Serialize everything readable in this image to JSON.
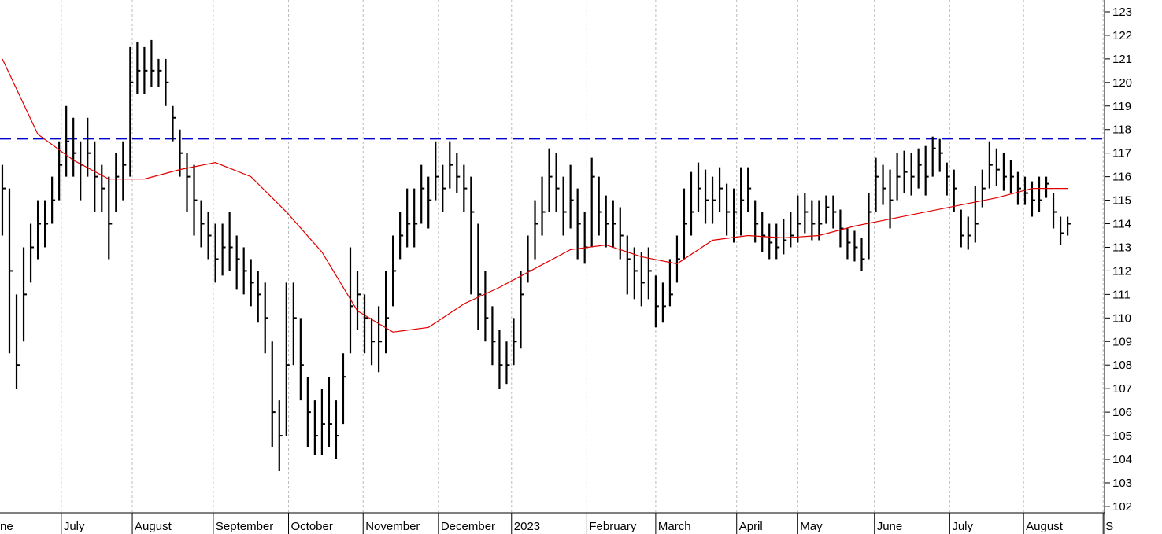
{
  "chart_data": {
    "type": "ohlc",
    "color": "#000000",
    "high": [
      116.5,
      115.5,
      111,
      113,
      114,
      115,
      115,
      116,
      117.5,
      119,
      118.5,
      117.5,
      118.5,
      117.5,
      116.5,
      116,
      117,
      117.5,
      121.5,
      121.7,
      121.5,
      121.8,
      121,
      121,
      119,
      118,
      117,
      116.5,
      115,
      114.5,
      114,
      114,
      114.5,
      113.5,
      113,
      112.5,
      112,
      111.5,
      109,
      106.5,
      111.5,
      111.5,
      110,
      107.5,
      106.5,
      107,
      107.5,
      106.5,
      108.5,
      113,
      112,
      111,
      110,
      110.5,
      112,
      113.5,
      114.5,
      115.5,
      115.5,
      116.5,
      116,
      117.5,
      116.5,
      117.5,
      117,
      116.5,
      116,
      114,
      112,
      110.5,
      109.5,
      109,
      110,
      112,
      113.5,
      115,
      116,
      117.2,
      117,
      116,
      116.5,
      115.5,
      114.5,
      116.8,
      116,
      115.2,
      115,
      114.7,
      113.5,
      113,
      112.8,
      113,
      111.8,
      111.5,
      112.5,
      113.5,
      115.5,
      116.2,
      116.6,
      116.3,
      116,
      116.4,
      115.7,
      115.5,
      116.4,
      116.4,
      115,
      114.5,
      114,
      114,
      114.2,
      114.5,
      115.2,
      115.3,
      115,
      115,
      115.2,
      115.2,
      114.6,
      113.8,
      113.7,
      113.4,
      115.3,
      116.8,
      116.5,
      116.3,
      117,
      117.1,
      117,
      117.2,
      117.3,
      117.7,
      117.6,
      116.6,
      116.3,
      114.6,
      114.3,
      115.6,
      116.3,
      117.5,
      117.2,
      117,
      116.7,
      116.2,
      116,
      115.8,
      116,
      116,
      115.3,
      114.3,
      114.3
    ],
    "low": [
      113.5,
      108.5,
      107,
      109,
      111.5,
      112.5,
      113,
      114,
      115,
      116,
      116,
      115,
      116,
      114.5,
      114.5,
      112.5,
      114.5,
      115,
      116,
      119.5,
      119.5,
      119.8,
      119.8,
      119,
      117.5,
      116,
      114.5,
      113.5,
      113,
      112.5,
      111.5,
      111.8,
      112,
      111.2,
      111,
      110.5,
      109.8,
      108.5,
      104.5,
      103.5,
      105,
      108,
      106.5,
      104.5,
      104.2,
      104.2,
      104.5,
      104,
      105.5,
      108.5,
      109.5,
      108.5,
      108,
      107.7,
      108.5,
      110.5,
      112.5,
      113,
      113,
      114,
      113.8,
      115,
      114.5,
      115.5,
      115.3,
      114.5,
      111,
      109.5,
      109,
      108,
      107,
      107.2,
      108,
      108.7,
      111.5,
      112.5,
      113.5,
      114.5,
      114.5,
      113.5,
      113.8,
      112.5,
      112.3,
      113,
      113.5,
      113,
      113,
      112.5,
      111,
      110.8,
      110.5,
      110.8,
      109.6,
      109.8,
      110.5,
      111.5,
      112.5,
      113.5,
      114.5,
      114,
      114,
      114.5,
      113.5,
      113.2,
      113.5,
      114.5,
      113.2,
      112.8,
      112.5,
      112.5,
      112.7,
      113,
      113.2,
      113.6,
      113.3,
      113.3,
      114,
      113.8,
      113,
      112.5,
      112.4,
      112,
      112.5,
      114.5,
      114.8,
      113.8,
      115,
      115.3,
      115.2,
      115.5,
      115.2,
      116,
      116.2,
      115.2,
      114.5,
      113,
      112.9,
      113.2,
      114.7,
      115.5,
      115.6,
      115.4,
      115.3,
      114.8,
      114.8,
      114.3,
      114.5,
      115.1,
      113.8,
      113.1,
      113.5
    ],
    "close": [
      115.5,
      112,
      108,
      111,
      113,
      114,
      114,
      115,
      116.5,
      117.5,
      117,
      116.5,
      117,
      116,
      115.5,
      114,
      116,
      116.5,
      120,
      120.5,
      120.5,
      120.5,
      120.5,
      120,
      118.5,
      117,
      116,
      115,
      114,
      113.5,
      112.5,
      113,
      113,
      112.5,
      112,
      111.5,
      111,
      110,
      106,
      105,
      108,
      110,
      108,
      106,
      105,
      105.5,
      105.5,
      105,
      107.5,
      110.5,
      111,
      110,
      109,
      109,
      110,
      112,
      113.5,
      114,
      114,
      115.5,
      115,
      116,
      115.5,
      116.5,
      116,
      115.5,
      114.5,
      111,
      110,
      109,
      108,
      108,
      109,
      111,
      112,
      114,
      114.5,
      116,
      115.5,
      114.5,
      115,
      114,
      113,
      116,
      114.5,
      114,
      114,
      113.5,
      112.5,
      112,
      111.5,
      112,
      110.5,
      110.5,
      111,
      112.5,
      114,
      114.5,
      115.5,
      115,
      115,
      115.5,
      114.5,
      114.5,
      115,
      115.5,
      114,
      113.5,
      113.2,
      113,
      113.3,
      113.5,
      114,
      114.5,
      114,
      114,
      114.7,
      114.5,
      113.8,
      113.2,
      113,
      112.5,
      114.5,
      116,
      115.5,
      115,
      116,
      116.2,
      116,
      116.5,
      116,
      117.2,
      117,
      116,
      115.5,
      113.5,
      113.5,
      114,
      115.5,
      116.5,
      116.3,
      116,
      116,
      115.5,
      115.3,
      115,
      115,
      115.7,
      114.5,
      113.6,
      114
    ],
    "moving_average": {
      "color": "#e00000",
      "x": [
        0,
        5,
        10,
        15,
        20,
        25,
        30,
        35,
        40,
        45,
        50,
        55,
        60,
        65,
        70,
        75,
        80,
        85,
        90,
        95,
        100,
        105,
        110,
        115,
        120,
        125,
        130,
        135,
        140,
        145,
        150
      ],
      "values": [
        121.0,
        117.8,
        116.7,
        115.9,
        115.9,
        116.3,
        116.6,
        116.0,
        114.5,
        112.8,
        110.3,
        109.4,
        109.6,
        110.6,
        111.3,
        112.1,
        112.9,
        113.1,
        112.6,
        112.3,
        113.3,
        113.5,
        113.4,
        113.5,
        113.9,
        114.2,
        114.5,
        114.8,
        115.1,
        115.5,
        115.5
      ]
    },
    "reference_line": {
      "value": 117.6,
      "color": "#0000cc"
    },
    "xlim": [
      -0.33,
      155.2
    ],
    "xticks": [
      {
        "value": -2.3,
        "label": "ne"
      },
      {
        "value": 8.3,
        "label": "July"
      },
      {
        "value": 18.3,
        "label": "August"
      },
      {
        "value": 29.7,
        "label": "September"
      },
      {
        "value": 40.3,
        "label": "October"
      },
      {
        "value": 50.8,
        "label": "November"
      },
      {
        "value": 61.4,
        "label": "December"
      },
      {
        "value": 71.7,
        "label": "2023"
      },
      {
        "value": 82.3,
        "label": "February"
      },
      {
        "value": 92,
        "label": "March"
      },
      {
        "value": 103.4,
        "label": "April"
      },
      {
        "value": 112,
        "label": "May"
      },
      {
        "value": 122.8,
        "label": "June"
      },
      {
        "value": 133.4,
        "label": "July"
      },
      {
        "value": 143.8,
        "label": "August"
      },
      {
        "value": 155,
        "label": "S"
      }
    ],
    "ylim": [
      101.73,
      123.5
    ],
    "yticks": [
      102,
      103,
      104,
      105,
      106,
      107,
      108,
      109,
      110,
      111,
      112,
      113,
      114,
      115,
      116,
      117,
      118,
      119,
      120,
      121,
      122,
      123
    ],
    "grid": true
  }
}
